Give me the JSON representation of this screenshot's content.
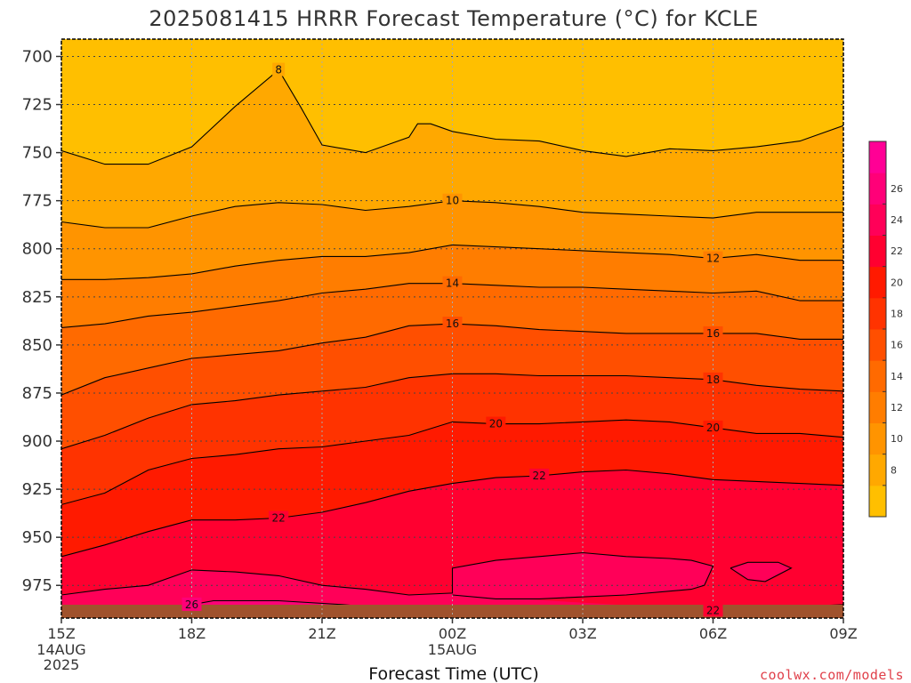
{
  "chart_data": {
    "type": "contour",
    "title": "2025081415 HRRR Forecast Temperature (°C) for KCLE",
    "xlabel": "Forecast Time (UTC)",
    "ylabel": "",
    "y_axis": {
      "scale": "pressure (inverted)",
      "ticks": [
        700,
        725,
        750,
        775,
        800,
        825,
        850,
        875,
        900,
        925,
        950,
        975
      ],
      "range": [
        691,
        992
      ]
    },
    "x_axis": {
      "range_hours": [
        0,
        18
      ],
      "ticks": [
        {
          "label": "15Z",
          "sub": [
            "14AUG",
            "2025"
          ],
          "hour": 0
        },
        {
          "label": "18Z",
          "sub": [],
          "hour": 3
        },
        {
          "label": "21Z",
          "sub": [],
          "hour": 6
        },
        {
          "label": "00Z",
          "sub": [
            "15AUG"
          ],
          "hour": 9
        },
        {
          "label": "03Z",
          "sub": [],
          "hour": 12
        },
        {
          "label": "06Z",
          "sub": [],
          "hour": 15
        },
        {
          "label": "09Z",
          "sub": [],
          "hour": 18
        }
      ]
    },
    "grid": true,
    "colorbar": {
      "position": "right",
      "levels": [
        6,
        8,
        10,
        12,
        14,
        16,
        18,
        20,
        22,
        24,
        26,
        28
      ],
      "colors": [
        "#ffbf00",
        "#ffa800",
        "#ff9400",
        "#ff7d00",
        "#ff6a00",
        "#ff4f00",
        "#ff3300",
        "#ff1a00",
        "#ff0030",
        "#ff0058",
        "#ff0078",
        "#ff0095"
      ],
      "tick_labels": [
        8,
        10,
        12,
        14,
        16,
        18,
        20,
        22,
        24,
        26
      ]
    },
    "surface_color": "#a0522d",
    "contours": [
      {
        "level": 8,
        "points": [
          [
            0,
            749
          ],
          [
            1,
            756
          ],
          [
            2,
            756
          ],
          [
            3,
            747
          ],
          [
            4,
            726
          ],
          [
            5,
            707
          ],
          [
            5.5,
            726
          ],
          [
            6,
            746
          ],
          [
            7,
            750
          ],
          [
            8,
            742
          ],
          [
            8.2,
            735
          ],
          [
            8.5,
            735
          ],
          [
            9,
            739
          ],
          [
            10,
            743
          ],
          [
            11,
            744
          ],
          [
            12,
            749
          ],
          [
            13,
            752
          ],
          [
            14,
            748
          ],
          [
            15,
            749
          ],
          [
            16,
            747
          ],
          [
            17,
            744
          ],
          [
            18,
            736
          ]
        ],
        "labels": [
          {
            "hour": 5,
            "text": "8"
          }
        ]
      },
      {
        "level": 10,
        "points": [
          [
            0,
            786
          ],
          [
            1,
            789
          ],
          [
            2,
            789
          ],
          [
            3,
            783
          ],
          [
            4,
            778
          ],
          [
            5,
            776
          ],
          [
            6,
            777
          ],
          [
            7,
            780
          ],
          [
            8,
            778
          ],
          [
            9,
            775
          ],
          [
            10,
            776
          ],
          [
            11,
            778
          ],
          [
            12,
            781
          ],
          [
            13,
            782
          ],
          [
            14,
            783
          ],
          [
            15,
            784
          ],
          [
            16,
            781
          ],
          [
            17,
            781
          ],
          [
            18,
            781
          ]
        ],
        "labels": [
          {
            "hour": 9,
            "text": "10"
          }
        ]
      },
      {
        "level": 12,
        "points": [
          [
            0,
            816
          ],
          [
            1,
            816
          ],
          [
            2,
            815
          ],
          [
            3,
            813
          ],
          [
            4,
            809
          ],
          [
            5,
            806
          ],
          [
            6,
            804
          ],
          [
            7,
            804
          ],
          [
            8,
            802
          ],
          [
            9,
            798
          ],
          [
            10,
            799
          ],
          [
            11,
            800
          ],
          [
            12,
            801
          ],
          [
            13,
            802
          ],
          [
            14,
            803
          ],
          [
            15,
            805
          ],
          [
            16,
            803
          ],
          [
            17,
            806
          ],
          [
            18,
            806
          ]
        ],
        "labels": [
          {
            "hour": 15,
            "text": "12"
          }
        ]
      },
      {
        "level": 14,
        "points": [
          [
            0,
            841
          ],
          [
            1,
            839
          ],
          [
            2,
            835
          ],
          [
            3,
            833
          ],
          [
            4,
            830
          ],
          [
            5,
            827
          ],
          [
            6,
            823
          ],
          [
            7,
            821
          ],
          [
            8,
            818
          ],
          [
            9,
            818
          ],
          [
            10,
            819
          ],
          [
            11,
            820
          ],
          [
            12,
            820
          ],
          [
            13,
            821
          ],
          [
            14,
            822
          ],
          [
            15,
            823
          ],
          [
            16,
            822
          ],
          [
            17,
            827
          ],
          [
            18,
            827
          ]
        ],
        "labels": [
          {
            "hour": 9,
            "text": "14"
          }
        ]
      },
      {
        "level": 16,
        "points": [
          [
            0,
            876
          ],
          [
            1,
            867
          ],
          [
            2,
            862
          ],
          [
            3,
            857
          ],
          [
            4,
            855
          ],
          [
            5,
            853
          ],
          [
            6,
            849
          ],
          [
            7,
            846
          ],
          [
            8,
            840
          ],
          [
            9,
            839
          ],
          [
            10,
            840
          ],
          [
            11,
            842
          ],
          [
            12,
            843
          ],
          [
            13,
            844
          ],
          [
            14,
            844
          ],
          [
            15,
            844
          ],
          [
            16,
            844
          ],
          [
            17,
            847
          ],
          [
            18,
            847
          ]
        ],
        "labels": [
          {
            "hour": 9,
            "text": "16"
          },
          {
            "hour": 15,
            "text": "16"
          }
        ]
      },
      {
        "level": 18,
        "points": [
          [
            0,
            904
          ],
          [
            1,
            897
          ],
          [
            2,
            888
          ],
          [
            3,
            881
          ],
          [
            4,
            879
          ],
          [
            5,
            876
          ],
          [
            6,
            874
          ],
          [
            7,
            872
          ],
          [
            8,
            867
          ],
          [
            9,
            865
          ],
          [
            10,
            865
          ],
          [
            11,
            866
          ],
          [
            12,
            866
          ],
          [
            13,
            866
          ],
          [
            14,
            867
          ],
          [
            15,
            868
          ],
          [
            16,
            871
          ],
          [
            17,
            873
          ],
          [
            18,
            874
          ]
        ],
        "labels": [
          {
            "hour": 15,
            "text": "18"
          }
        ]
      },
      {
        "level": 20,
        "points": [
          [
            0,
            933
          ],
          [
            1,
            927
          ],
          [
            2,
            915
          ],
          [
            3,
            909
          ],
          [
            4,
            907
          ],
          [
            5,
            904
          ],
          [
            6,
            903
          ],
          [
            7,
            900
          ],
          [
            8,
            897
          ],
          [
            9,
            890
          ],
          [
            10,
            891
          ],
          [
            11,
            891
          ],
          [
            12,
            890
          ],
          [
            13,
            889
          ],
          [
            14,
            890
          ],
          [
            15,
            893
          ],
          [
            16,
            896
          ],
          [
            17,
            896
          ],
          [
            18,
            898
          ]
        ],
        "labels": [
          {
            "hour": 10,
            "text": "20"
          },
          {
            "hour": 15,
            "text": "20"
          }
        ]
      },
      {
        "level": 22,
        "points": [
          [
            0,
            960
          ],
          [
            1,
            954
          ],
          [
            2,
            947
          ],
          [
            3,
            941
          ],
          [
            4,
            941
          ],
          [
            5,
            940
          ],
          [
            6,
            937
          ],
          [
            7,
            932
          ],
          [
            8,
            926
          ],
          [
            9,
            922
          ],
          [
            10,
            919
          ],
          [
            11,
            918
          ],
          [
            12,
            916
          ],
          [
            13,
            915
          ],
          [
            14,
            917
          ],
          [
            15,
            920
          ],
          [
            16,
            921
          ],
          [
            17,
            922
          ],
          [
            18,
            923
          ]
        ],
        "labels": [
          {
            "hour": 5,
            "text": "22"
          },
          {
            "hour": 11,
            "text": "22"
          }
        ]
      },
      {
        "level": 22,
        "points": [
          [
            10.5,
            988
          ],
          [
            12,
            987
          ],
          [
            14,
            987
          ],
          [
            15,
            988
          ],
          [
            15.5,
            988
          ],
          [
            16,
            988
          ],
          [
            17,
            986
          ],
          [
            18,
            985
          ]
        ],
        "labels": [
          {
            "hour": 15,
            "text": "22"
          }
        ]
      },
      {
        "level": 24,
        "points": [
          [
            0,
            980
          ],
          [
            1,
            977
          ],
          [
            2,
            975
          ],
          [
            3,
            967
          ],
          [
            4,
            968
          ],
          [
            5,
            970
          ],
          [
            6,
            975
          ],
          [
            7,
            977
          ],
          [
            8,
            980
          ],
          [
            9,
            979
          ],
          [
            9,
            966
          ],
          [
            10,
            962
          ],
          [
            11,
            960
          ],
          [
            12,
            958
          ],
          [
            13,
            960
          ],
          [
            14,
            961
          ],
          [
            14.5,
            962
          ],
          [
            15,
            965
          ],
          [
            14.8,
            975
          ],
          [
            14.5,
            977
          ],
          [
            13,
            980
          ],
          [
            11,
            982
          ],
          [
            10,
            982
          ],
          [
            9,
            980
          ]
        ],
        "labels": []
      },
      {
        "level": 24,
        "points": [
          [
            15.4,
            966
          ],
          [
            15.8,
            963
          ],
          [
            16.5,
            963
          ],
          [
            16.8,
            966
          ],
          [
            16.2,
            973
          ],
          [
            15.8,
            972
          ],
          [
            15.4,
            966
          ]
        ],
        "labels": []
      },
      {
        "level": 26,
        "points": [
          [
            2.2,
            986
          ],
          [
            3,
            985
          ],
          [
            3.5,
            983
          ],
          [
            5,
            983
          ],
          [
            6.5,
            985
          ],
          [
            7,
            986
          ]
        ],
        "labels": [
          {
            "hour": 3,
            "text": "26"
          }
        ]
      }
    ]
  },
  "credit": "coolwx.com/models"
}
